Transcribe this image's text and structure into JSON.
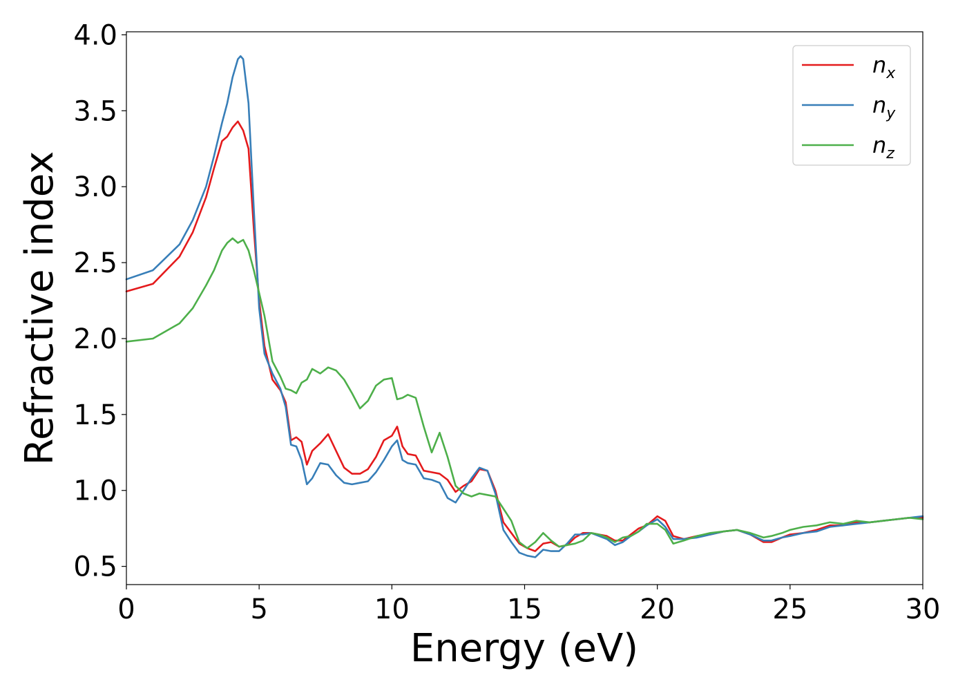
{
  "chart_data": {
    "type": "line",
    "xlabel": "Energy (eV)",
    "ylabel": "Refractive index",
    "xlim": [
      0,
      30
    ],
    "ylim": [
      0.38,
      4.02
    ],
    "xticks": [
      0,
      5,
      10,
      15,
      20,
      25,
      30
    ],
    "yticks": [
      0.5,
      1.0,
      1.5,
      2.0,
      2.5,
      3.0,
      3.5,
      4.0
    ],
    "xtick_labels": [
      "0",
      "5",
      "10",
      "15",
      "20",
      "25",
      "30"
    ],
    "ytick_labels": [
      "0.5",
      "1.0",
      "1.5",
      "2.0",
      "2.5",
      "3.0",
      "3.5",
      "4.0"
    ],
    "grid": false,
    "legend_position": "top-right",
    "series": [
      {
        "name": "n_x",
        "legend_base": "n",
        "legend_sub": "x",
        "color": "#e41a1c",
        "x": [
          0,
          1,
          2,
          2.5,
          3,
          3.3,
          3.6,
          3.8,
          4.0,
          4.2,
          4.4,
          4.6,
          4.8,
          5.0,
          5.2,
          5.5,
          5.8,
          6.0,
          6.2,
          6.4,
          6.6,
          6.8,
          7.0,
          7.3,
          7.6,
          7.9,
          8.2,
          8.5,
          8.8,
          9.1,
          9.4,
          9.7,
          10.0,
          10.2,
          10.4,
          10.6,
          10.9,
          11.2,
          11.5,
          11.8,
          12.1,
          12.4,
          12.7,
          13.0,
          13.3,
          13.6,
          13.9,
          14.2,
          14.5,
          14.8,
          15.1,
          15.4,
          15.7,
          16.0,
          16.3,
          16.6,
          16.9,
          17.2,
          17.5,
          17.8,
          18.1,
          18.4,
          18.7,
          19.0,
          19.3,
          19.6,
          20.0,
          20.3,
          20.6,
          21.0,
          21.5,
          22.0,
          22.5,
          23.0,
          23.5,
          24.0,
          24.3,
          24.7,
          25.0,
          25.5,
          26.0,
          26.5,
          27.0,
          27.5,
          28.0,
          28.5,
          29.0,
          29.5,
          30.0
        ],
        "y": [
          2.31,
          2.36,
          2.54,
          2.7,
          2.93,
          3.12,
          3.3,
          3.33,
          3.39,
          3.43,
          3.37,
          3.25,
          2.72,
          2.25,
          1.95,
          1.73,
          1.66,
          1.58,
          1.33,
          1.35,
          1.32,
          1.17,
          1.26,
          1.31,
          1.37,
          1.26,
          1.15,
          1.11,
          1.11,
          1.14,
          1.22,
          1.33,
          1.36,
          1.42,
          1.29,
          1.24,
          1.23,
          1.13,
          1.12,
          1.11,
          1.07,
          0.99,
          1.03,
          1.06,
          1.14,
          1.13,
          1.0,
          0.79,
          0.72,
          0.65,
          0.62,
          0.6,
          0.65,
          0.66,
          0.63,
          0.64,
          0.69,
          0.72,
          0.72,
          0.71,
          0.7,
          0.67,
          0.67,
          0.71,
          0.75,
          0.77,
          0.83,
          0.8,
          0.7,
          0.68,
          0.7,
          0.71,
          0.73,
          0.74,
          0.71,
          0.66,
          0.66,
          0.69,
          0.71,
          0.72,
          0.74,
          0.77,
          0.77,
          0.79,
          0.79,
          0.8,
          0.81,
          0.82,
          0.82
        ]
      },
      {
        "name": "n_y",
        "legend_base": "n",
        "legend_sub": "y",
        "color": "#377eb8",
        "x": [
          0,
          1,
          2,
          2.5,
          3,
          3.3,
          3.6,
          3.8,
          4.0,
          4.2,
          4.3,
          4.4,
          4.6,
          4.8,
          5.0,
          5.2,
          5.5,
          5.8,
          6.0,
          6.2,
          6.4,
          6.6,
          6.8,
          7.0,
          7.3,
          7.6,
          7.9,
          8.2,
          8.5,
          8.8,
          9.1,
          9.4,
          9.7,
          10.0,
          10.2,
          10.4,
          10.6,
          10.9,
          11.2,
          11.5,
          11.8,
          12.1,
          12.4,
          12.7,
          13.0,
          13.3,
          13.6,
          13.9,
          14.2,
          14.5,
          14.8,
          15.1,
          15.4,
          15.7,
          16.0,
          16.3,
          16.6,
          16.9,
          17.2,
          17.5,
          17.8,
          18.1,
          18.4,
          18.7,
          19.0,
          19.3,
          19.6,
          20.0,
          20.3,
          20.6,
          21.0,
          21.5,
          22.0,
          22.5,
          23.0,
          23.5,
          24.0,
          24.3,
          24.7,
          25.0,
          25.5,
          26.0,
          26.5,
          27.0,
          27.5,
          28.0,
          28.5,
          29.0,
          29.5,
          30.0
        ],
        "y": [
          2.39,
          2.45,
          2.62,
          2.78,
          3.0,
          3.2,
          3.42,
          3.55,
          3.72,
          3.84,
          3.86,
          3.84,
          3.55,
          2.85,
          2.2,
          1.9,
          1.77,
          1.67,
          1.55,
          1.3,
          1.29,
          1.2,
          1.04,
          1.08,
          1.18,
          1.17,
          1.1,
          1.05,
          1.04,
          1.05,
          1.06,
          1.12,
          1.2,
          1.29,
          1.33,
          1.2,
          1.18,
          1.17,
          1.08,
          1.07,
          1.05,
          0.95,
          0.92,
          1.0,
          1.08,
          1.15,
          1.13,
          0.98,
          0.74,
          0.66,
          0.59,
          0.57,
          0.56,
          0.61,
          0.6,
          0.6,
          0.65,
          0.71,
          0.71,
          0.72,
          0.7,
          0.68,
          0.64,
          0.66,
          0.7,
          0.73,
          0.77,
          0.81,
          0.76,
          0.68,
          0.68,
          0.69,
          0.71,
          0.73,
          0.74,
          0.71,
          0.67,
          0.67,
          0.69,
          0.7,
          0.72,
          0.73,
          0.76,
          0.77,
          0.78,
          0.79,
          0.8,
          0.81,
          0.82,
          0.83
        ]
      },
      {
        "name": "n_z",
        "legend_base": "n",
        "legend_sub": "z",
        "color": "#4daf4a",
        "x": [
          0,
          1,
          2,
          2.5,
          3,
          3.3,
          3.6,
          3.8,
          4.0,
          4.2,
          4.4,
          4.6,
          4.8,
          5.0,
          5.2,
          5.5,
          5.8,
          6.0,
          6.2,
          6.4,
          6.6,
          6.8,
          7.0,
          7.3,
          7.6,
          7.9,
          8.2,
          8.5,
          8.8,
          9.1,
          9.4,
          9.7,
          10.0,
          10.2,
          10.4,
          10.6,
          10.9,
          11.2,
          11.5,
          11.8,
          12.1,
          12.4,
          12.7,
          13.0,
          13.3,
          13.6,
          13.9,
          14.2,
          14.5,
          14.8,
          15.1,
          15.4,
          15.7,
          16.0,
          16.3,
          16.6,
          16.9,
          17.2,
          17.5,
          17.8,
          18.1,
          18.4,
          18.7,
          19.0,
          19.3,
          19.6,
          20.0,
          20.3,
          20.6,
          21.0,
          21.5,
          22.0,
          22.5,
          23.0,
          23.5,
          24.0,
          24.3,
          24.7,
          25.0,
          25.5,
          26.0,
          26.5,
          27.0,
          27.5,
          28.0,
          28.5,
          29.0,
          29.5,
          30.0
        ],
        "y": [
          1.98,
          2.0,
          2.1,
          2.2,
          2.35,
          2.45,
          2.58,
          2.63,
          2.66,
          2.63,
          2.65,
          2.58,
          2.45,
          2.3,
          2.15,
          1.85,
          1.75,
          1.67,
          1.66,
          1.64,
          1.71,
          1.73,
          1.8,
          1.77,
          1.81,
          1.79,
          1.73,
          1.64,
          1.54,
          1.59,
          1.69,
          1.73,
          1.74,
          1.6,
          1.61,
          1.63,
          1.61,
          1.42,
          1.25,
          1.38,
          1.22,
          1.03,
          0.98,
          0.96,
          0.98,
          0.97,
          0.96,
          0.88,
          0.8,
          0.66,
          0.62,
          0.66,
          0.72,
          0.67,
          0.63,
          0.64,
          0.65,
          0.67,
          0.72,
          0.71,
          0.69,
          0.66,
          0.69,
          0.7,
          0.73,
          0.78,
          0.78,
          0.74,
          0.65,
          0.67,
          0.7,
          0.72,
          0.73,
          0.74,
          0.72,
          0.69,
          0.7,
          0.72,
          0.74,
          0.76,
          0.77,
          0.79,
          0.78,
          0.8,
          0.79,
          0.8,
          0.81,
          0.82,
          0.81
        ]
      }
    ]
  }
}
